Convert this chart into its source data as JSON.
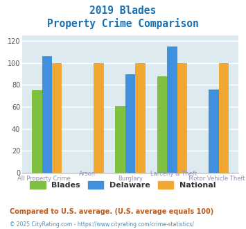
{
  "title_line1": "2019 Blades",
  "title_line2": "Property Crime Comparison",
  "title_color": "#1a6faf",
  "categories": [
    "All Property Crime",
    "Arson",
    "Burglary",
    "Larceny & Theft",
    "Motor Vehicle Theft"
  ],
  "cat_top": [
    "",
    "Arson",
    "",
    "Larceny & Theft",
    ""
  ],
  "cat_bot": [
    "All Property Crime",
    "",
    "Burglary",
    "",
    "Motor Vehicle Theft"
  ],
  "series": {
    "Blades": [
      75,
      0,
      61,
      88,
      0
    ],
    "Delaware": [
      106,
      0,
      90,
      115,
      76
    ],
    "National": [
      100,
      100,
      100,
      100,
      100
    ]
  },
  "colors": {
    "Blades": "#80c040",
    "Delaware": "#4090e0",
    "National": "#f0a830"
  },
  "ylim": [
    0,
    125
  ],
  "yticks": [
    0,
    20,
    40,
    60,
    80,
    100,
    120
  ],
  "plot_bg": "#ddeaf0",
  "grid_color": "#ffffff",
  "xlabel_color": "#9090b8",
  "footnote1": "Compared to U.S. average. (U.S. average equals 100)",
  "footnote2": "© 2025 CityRating.com - https://www.cityrating.com/crime-statistics/",
  "footnote1_color": "#c05818",
  "footnote2_color": "#4090c8",
  "legend_color": "#333333"
}
